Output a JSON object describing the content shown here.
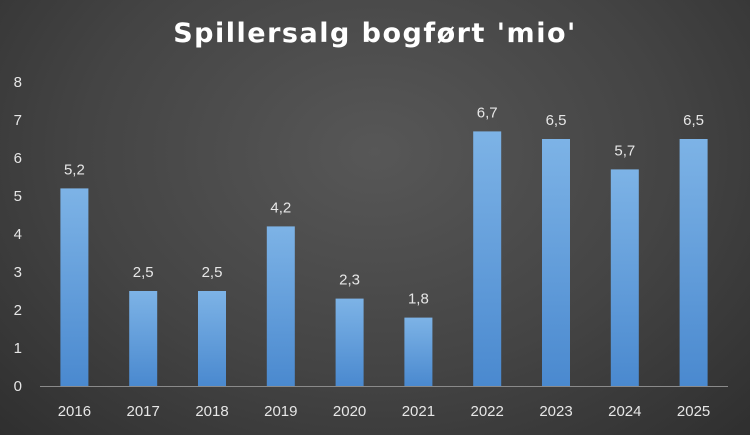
{
  "chart_data": {
    "type": "bar",
    "title": "Spillersalg bogført 'mio'",
    "categories": [
      "2016",
      "2017",
      "2018",
      "2019",
      "2020",
      "2021",
      "2022",
      "2023",
      "2024",
      "2025"
    ],
    "values": [
      5.2,
      2.5,
      2.5,
      4.2,
      2.3,
      1.8,
      6.7,
      6.5,
      5.7,
      6.5
    ],
    "value_labels": [
      "5,2",
      "2,5",
      "2,5",
      "4,2",
      "2,3",
      "1,8",
      "6,7",
      "6,5",
      "5,7",
      "6,5"
    ],
    "yticks": [
      "0",
      "1",
      "2",
      "3",
      "4",
      "5",
      "6",
      "7",
      "8"
    ],
    "ylim": [
      0,
      8
    ],
    "grid": false,
    "legend": "none",
    "colors": {
      "bar_top": "#7db3e6",
      "bar_bottom": "#4a89cf",
      "text": "#e6e6e6",
      "axis_line": "#8a8a8a"
    }
  }
}
